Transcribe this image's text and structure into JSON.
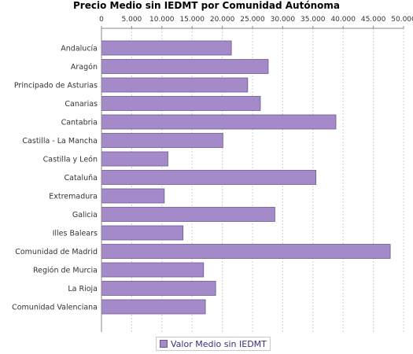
{
  "colors": {
    "bar_fill": "#a58ac9",
    "bar_stroke": "#6b5a8f",
    "grid": "#cfcfcf",
    "axis": "#888888"
  },
  "chart_data": {
    "type": "bar",
    "orientation": "horizontal",
    "title": "Precio Medio sin IEDMT por Comunidad Autónoma",
    "xlabel": "",
    "ylabel": "",
    "xlim": [
      0,
      50000
    ],
    "x_ticks": [
      0,
      5000,
      10000,
      15000,
      20000,
      25000,
      30000,
      35000,
      40000,
      45000,
      50000
    ],
    "x_tick_labels": [
      "0",
      "5.000",
      "10.000",
      "15.000",
      "20.000",
      "25.000",
      "30.000",
      "35.000",
      "40.000",
      "45.000",
      "50.000"
    ],
    "x_axis_position": "top",
    "grid": true,
    "legend_position": "bottom-center",
    "categories": [
      "Andalucía",
      "Aragón",
      "Principado de Asturias",
      "Canarias",
      "Cantabria",
      "Castilla - La Mancha",
      "Castilla y León",
      "Cataluña",
      "Extremadura",
      "Galicia",
      "Illes Balears",
      "Comunidad de Madrid",
      "Región de Murcia",
      "La Rioja",
      "Comunidad Valenciana"
    ],
    "series": [
      {
        "name": "Valor Medio sin IEDMT",
        "values": [
          21500,
          27600,
          24200,
          26300,
          38800,
          20100,
          11000,
          35500,
          10400,
          28700,
          13500,
          47800,
          16900,
          18900,
          17200
        ]
      }
    ]
  }
}
